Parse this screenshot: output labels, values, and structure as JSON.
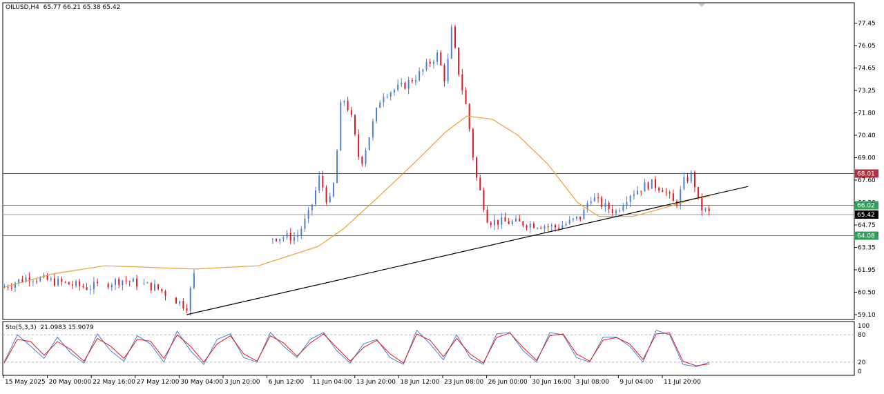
{
  "header": {
    "symbol": "OILUSD,H4",
    "ohlc": "65.77 66.21 65.38 65.42"
  },
  "stochastic_header": {
    "label": "Sto(5,3,3)",
    "values": "21.0983 15.9079"
  },
  "colors": {
    "bull_candle": "#4a7fd4",
    "bear_candle": "#e0141e",
    "moving_average": "#e8a033",
    "trendline": "#000000",
    "resistance_line": "#b03040",
    "support_line": "#2e9e5a",
    "current_price_line": "#9a9a9a",
    "stoch_main": "#4a7fd4",
    "stoch_signal": "#e0141e"
  },
  "chart_data": [
    {
      "type": "candlestick",
      "x_tick_labels": [
        "15 May 2025",
        "20 May 00:00",
        "22 May 16:00",
        "27 May 12:00",
        "30 May 04:00",
        "3 Jun 20:00",
        "6 Jun 12:00",
        "11 Jun 04:00",
        "13 Jun 20:00",
        "18 Jun 12:00",
        "23 Jun 08:00",
        "26 Jun 00:00",
        "30 Jun 16:00",
        "3 Jul 08:00",
        "9 Jul 04:00",
        "11 Jul 20:00"
      ],
      "y_tick_labels": [
        "77.45",
        "76.05",
        "74.65",
        "73.25",
        "71.80",
        "70.40",
        "69.00",
        "67.60",
        "66.20",
        "64.75",
        "63.35",
        "61.95",
        "60.50",
        "59.10"
      ],
      "ylim": [
        59.1,
        78.5
      ],
      "price_labels": [
        {
          "text": "68.01",
          "value": 68.01,
          "role": "resistance"
        },
        {
          "text": "66.02",
          "value": 66.02,
          "role": "support"
        },
        {
          "text": "65.42",
          "value": 65.42,
          "role": "current"
        },
        {
          "text": "64.08",
          "value": 64.08,
          "role": "support"
        }
      ],
      "trendline": [
        {
          "x": 0.216,
          "y": 59.1
        },
        {
          "x": 0.875,
          "y": 67.2
        }
      ],
      "anchors": [
        {
          "x": 0.0,
          "y": 60.8
        },
        {
          "x": 0.03,
          "y": 61.5
        },
        {
          "x": 0.06,
          "y": 61.2
        },
        {
          "x": 0.1,
          "y": 60.8
        },
        {
          "x": 0.14,
          "y": 61.3
        },
        {
          "x": 0.18,
          "y": 60.8
        },
        {
          "x": 0.216,
          "y": 59.6
        },
        {
          "x": 0.225,
          "y": 61.7
        },
        {
          "x": 0.318,
          "y": 64.0
        },
        {
          "x": 0.345,
          "y": 64.0
        },
        {
          "x": 0.36,
          "y": 65.5
        },
        {
          "x": 0.372,
          "y": 67.8
        },
        {
          "x": 0.383,
          "y": 66.0
        },
        {
          "x": 0.39,
          "y": 67.7
        },
        {
          "x": 0.398,
          "y": 73.0
        },
        {
          "x": 0.408,
          "y": 71.8
        },
        {
          "x": 0.42,
          "y": 68.5
        },
        {
          "x": 0.445,
          "y": 73.0
        },
        {
          "x": 0.47,
          "y": 73.5
        },
        {
          "x": 0.49,
          "y": 74.3
        },
        {
          "x": 0.51,
          "y": 75.5
        },
        {
          "x": 0.52,
          "y": 73.8
        },
        {
          "x": 0.527,
          "y": 77.0
        },
        {
          "x": 0.535,
          "y": 74.5
        },
        {
          "x": 0.545,
          "y": 72.0
        },
        {
          "x": 0.555,
          "y": 68.0
        },
        {
          "x": 0.57,
          "y": 65.0
        },
        {
          "x": 0.6,
          "y": 64.9
        },
        {
          "x": 0.625,
          "y": 64.8
        },
        {
          "x": 0.65,
          "y": 64.6
        },
        {
          "x": 0.665,
          "y": 64.9
        },
        {
          "x": 0.68,
          "y": 65.3
        },
        {
          "x": 0.69,
          "y": 66.6
        },
        {
          "x": 0.705,
          "y": 66.0
        },
        {
          "x": 0.72,
          "y": 65.6
        },
        {
          "x": 0.735,
          "y": 66.7
        },
        {
          "x": 0.76,
          "y": 67.4
        },
        {
          "x": 0.775,
          "y": 67.1
        },
        {
          "x": 0.79,
          "y": 66.0
        },
        {
          "x": 0.8,
          "y": 67.5
        },
        {
          "x": 0.81,
          "y": 68.0
        },
        {
          "x": 0.818,
          "y": 65.9
        },
        {
          "x": 0.83,
          "y": 65.5
        }
      ],
      "moving_average": [
        {
          "x": 0.0,
          "y": 60.8
        },
        {
          "x": 0.06,
          "y": 61.7
        },
        {
          "x": 0.12,
          "y": 62.2
        },
        {
          "x": 0.225,
          "y": 62.0
        },
        {
          "x": 0.3,
          "y": 62.2
        },
        {
          "x": 0.37,
          "y": 63.4
        },
        {
          "x": 0.4,
          "y": 64.5
        },
        {
          "x": 0.44,
          "y": 66.5
        },
        {
          "x": 0.48,
          "y": 68.5
        },
        {
          "x": 0.52,
          "y": 70.6
        },
        {
          "x": 0.545,
          "y": 71.6
        },
        {
          "x": 0.575,
          "y": 71.4
        },
        {
          "x": 0.605,
          "y": 70.4
        },
        {
          "x": 0.64,
          "y": 68.6
        },
        {
          "x": 0.675,
          "y": 66.2
        },
        {
          "x": 0.7,
          "y": 65.3
        },
        {
          "x": 0.74,
          "y": 65.3
        },
        {
          "x": 0.78,
          "y": 65.9
        },
        {
          "x": 0.81,
          "y": 66.4
        },
        {
          "x": 0.83,
          "y": 66.6
        }
      ]
    },
    {
      "type": "line",
      "indicator": "stochastic",
      "ylim": [
        0,
        100
      ],
      "y_tick_labels": [
        "100",
        "80",
        "20",
        "0"
      ],
      "levels": [
        80,
        20
      ],
      "series": [
        {
          "role": "main",
          "values": [
            20,
            80,
            55,
            28,
            75,
            40,
            18,
            82,
            45,
            22,
            78,
            60,
            20,
            88,
            45,
            15,
            70,
            82,
            30,
            20,
            85,
            55,
            30,
            70,
            85,
            45,
            18,
            60,
            70,
            30,
            15,
            90,
            60,
            25,
            80,
            30,
            15,
            82,
            85,
            45,
            20,
            85,
            80,
            30,
            20,
            75,
            75,
            55,
            20,
            90,
            80,
            15,
            10,
            20
          ]
        },
        {
          "role": "signal",
          "values": [
            18,
            70,
            65,
            35,
            65,
            48,
            22,
            72,
            55,
            28,
            70,
            66,
            28,
            80,
            55,
            20,
            60,
            78,
            38,
            22,
            78,
            62,
            33,
            62,
            82,
            52,
            22,
            52,
            68,
            38,
            18,
            82,
            68,
            32,
            72,
            38,
            18,
            74,
            84,
            52,
            24,
            78,
            82,
            38,
            22,
            68,
            74,
            60,
            26,
            82,
            84,
            22,
            12,
            16
          ]
        }
      ]
    }
  ]
}
